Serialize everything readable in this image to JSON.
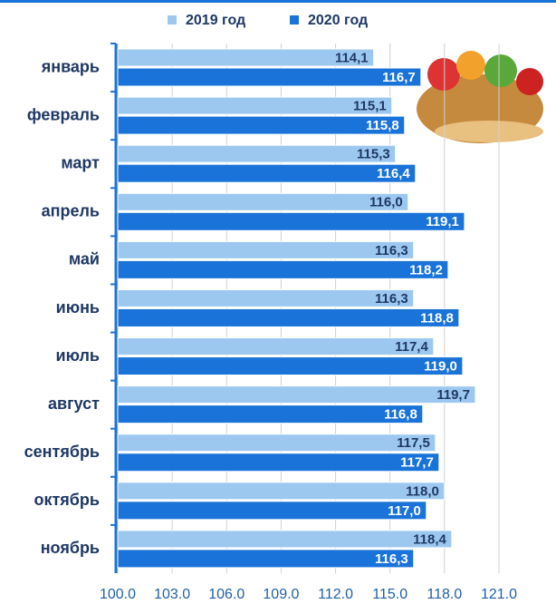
{
  "chart_data": {
    "type": "bar",
    "orientation": "horizontal",
    "categories": [
      "январь",
      "февраль",
      "март",
      "апрель",
      "май",
      "июнь",
      "июль",
      "август",
      "сентябрь",
      "октябрь",
      "ноябрь"
    ],
    "series": [
      {
        "name": "2019 год",
        "color": "#9cc8f0",
        "label_color": "#1f3864",
        "values": [
          114.1,
          115.1,
          115.3,
          116.0,
          116.3,
          116.3,
          117.4,
          119.7,
          117.5,
          118.0,
          118.4
        ],
        "value_labels": [
          "114,1",
          "115,1",
          "115,3",
          "116,0",
          "116,3",
          "116,3",
          "117,4",
          "119,7",
          "117,5",
          "118,0",
          "118,4"
        ]
      },
      {
        "name": "2020 год",
        "color": "#1a73d8",
        "label_color": "#ffffff",
        "values": [
          116.7,
          115.8,
          116.4,
          119.1,
          118.2,
          118.8,
          119.0,
          116.8,
          117.7,
          117.0,
          116.3
        ],
        "value_labels": [
          "116,7",
          "115,8",
          "116,4",
          "119,1",
          "118,2",
          "118,8",
          "119,0",
          "116,8",
          "117,7",
          "117,0",
          "116,3"
        ]
      }
    ],
    "xlim": [
      100,
      121
    ],
    "xticks": [
      {
        "value": 100,
        "label": "100.0"
      },
      {
        "value": 103,
        "label": "103.0"
      },
      {
        "value": 106,
        "label": "106.0"
      },
      {
        "value": 109,
        "label": "109.0"
      },
      {
        "value": 112,
        "label": "112.0"
      },
      {
        "value": 115,
        "label": "115.0"
      },
      {
        "value": 118,
        "label": "118.0"
      },
      {
        "value": 121,
        "label": "121.0"
      }
    ],
    "grid": true,
    "legend": "top"
  }
}
